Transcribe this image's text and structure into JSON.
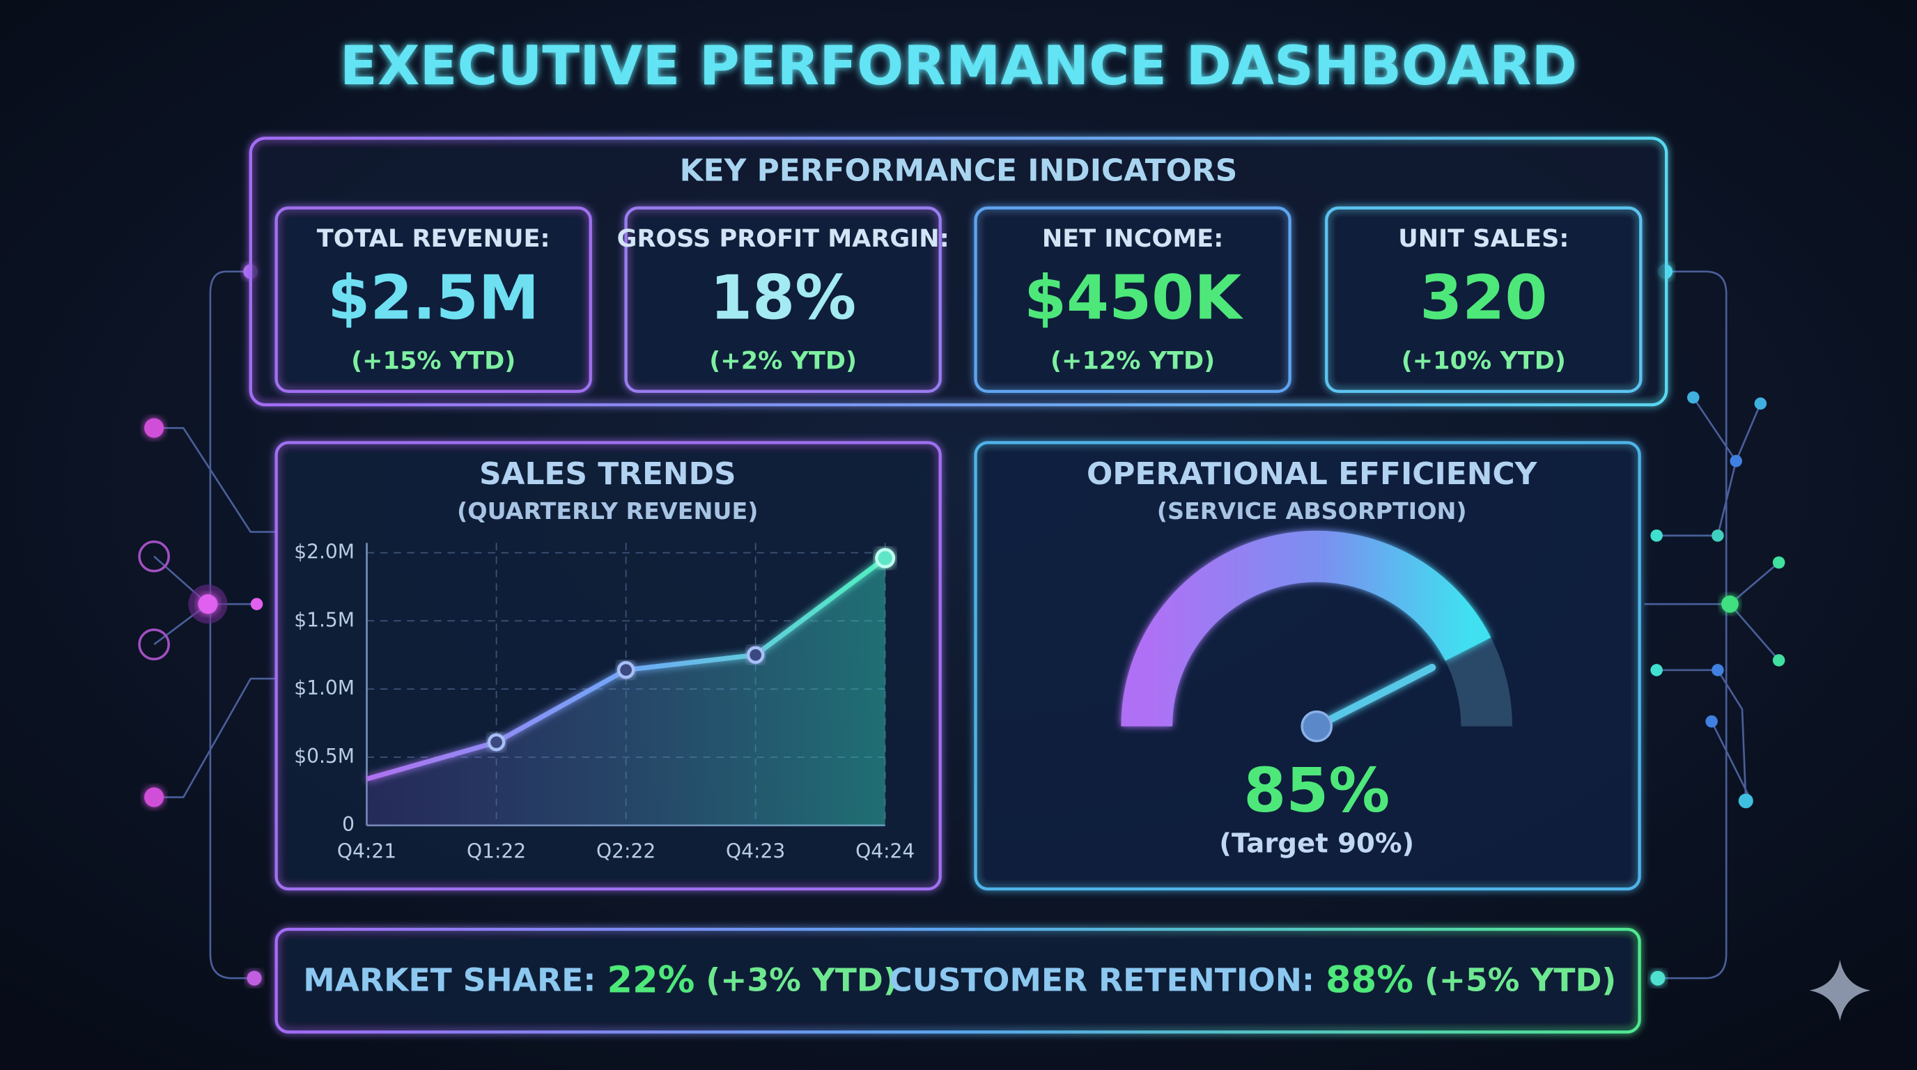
{
  "title": "EXECUTIVE PERFORMANCE DASHBOARD",
  "kpi_section": {
    "title": "KEY PERFORMANCE INDICATORS",
    "cards": [
      {
        "label": "TOTAL REVENUE:",
        "value": "$2.5M",
        "change": "(+15% YTD)"
      },
      {
        "label": "GROSS PROFIT MARGIN:",
        "value": "18%",
        "change": "(+2% YTD)"
      },
      {
        "label": "NET INCOME:",
        "value": "$450K",
        "change": "(+12% YTD)"
      },
      {
        "label": "UNIT SALES:",
        "value": "320",
        "change": "(+10% YTD)"
      }
    ]
  },
  "chart_data": [
    {
      "type": "line",
      "title": "SALES TRENDS",
      "subtitle": "(QUARTERLY REVENUE)",
      "categories": [
        "Q4:21",
        "Q1:22",
        "Q2:22",
        "Q4:23",
        "Q4:24"
      ],
      "values": [
        340000,
        610000,
        1140000,
        1250000,
        1960000
      ],
      "color": "#5ee6c8",
      "ylim": [
        0,
        2000000
      ],
      "yticks": [
        0,
        {
          "value": 500000,
          "label": "$0.5M"
        },
        {
          "value": 1000000,
          "label": "$1.0M"
        },
        {
          "value": 1500000,
          "label": "$1.5M"
        },
        {
          "value": 2000000,
          "label": "$2.0M"
        }
      ],
      "grid": true
    },
    {
      "type": "gauge",
      "title": "OPERATIONAL EFFICIENCY",
      "subtitle": "(SERVICE ABSORPTION)",
      "values": [
        85
      ],
      "value_labels": [
        "85%"
      ],
      "ylim": [
        0,
        100
      ],
      "annotation": "(Target 90%)",
      "color": "#4ee87a"
    }
  ],
  "footer": {
    "left": {
      "label": "MARKET SHARE:",
      "value": "22%",
      "change": "(+3% YTD)"
    },
    "right": {
      "label": "CUSTOMER RETENTION:",
      "value": "88%",
      "change": "(+5% YTD)"
    }
  }
}
